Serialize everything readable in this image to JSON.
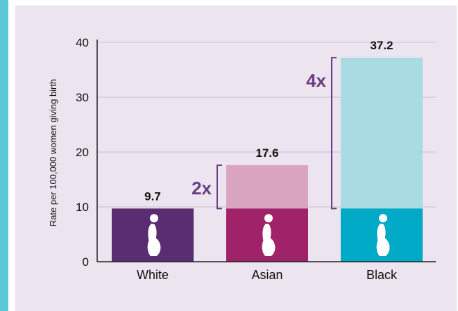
{
  "chart_data": {
    "type": "bar",
    "title": "",
    "xlabel": "",
    "ylabel": "Rate per 100,000 women giving birth",
    "ylim": [
      0,
      40
    ],
    "yticks": [
      0,
      10,
      20,
      30,
      40
    ],
    "grid": true,
    "categories": [
      "White",
      "Asian",
      "Black"
    ],
    "values": [
      9.7,
      17.6,
      37.2
    ],
    "value_labels": [
      "9.7",
      "17.6",
      "37.2"
    ],
    "baseline_value": 9.7,
    "colors": {
      "base": [
        "#5a2d73",
        "#a0236a",
        "#00a9c6"
      ],
      "excess": [
        "#5a2d73",
        "#d9a4bd",
        "#a9dbe3"
      ],
      "bracket": "#6a3d84",
      "ratio_text": "#6a3d84"
    },
    "comparisons": [
      {
        "category": "Asian",
        "label": "2x"
      },
      {
        "category": "Black",
        "label": "4x"
      }
    ],
    "icon": "pregnant-woman-silhouette-icon"
  }
}
